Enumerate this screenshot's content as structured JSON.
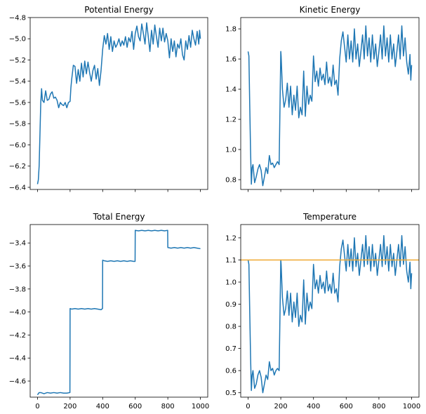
{
  "chart_data": [
    {
      "type": "line",
      "title": "Potential Energy",
      "xlim": [
        -45,
        1045
      ],
      "ylim": [
        -6.42,
        -4.8
      ],
      "x_ticks": [
        0,
        200,
        400,
        600,
        800,
        1000
      ],
      "y_ticks": [
        -6.4,
        -6.2,
        -6.0,
        -5.8,
        -5.6,
        -5.4,
        -5.2,
        -5.0,
        -4.8
      ],
      "y_tick_labels": [
        "−6.4",
        "−6.2",
        "−6.0",
        "−5.8",
        "−5.6",
        "−5.4",
        "−5.2",
        "−5.0",
        "−4.8"
      ],
      "show_x_tick_labels": false,
      "grid": false,
      "series": [
        {
          "color": "#1f77b4",
          "x": [
            0,
            5,
            10,
            15,
            20,
            25,
            30,
            40,
            50,
            60,
            70,
            80,
            90,
            100,
            110,
            120,
            130,
            140,
            150,
            160,
            170,
            180,
            190,
            200,
            205,
            210,
            220,
            230,
            240,
            250,
            260,
            270,
            280,
            290,
            300,
            310,
            320,
            330,
            340,
            350,
            360,
            370,
            380,
            390,
            400,
            410,
            420,
            430,
            440,
            450,
            460,
            470,
            480,
            490,
            500,
            510,
            520,
            530,
            540,
            550,
            560,
            570,
            580,
            590,
            600,
            610,
            620,
            630,
            640,
            650,
            660,
            670,
            680,
            690,
            700,
            710,
            720,
            730,
            740,
            750,
            760,
            770,
            780,
            790,
            800,
            810,
            820,
            830,
            840,
            850,
            860,
            870,
            880,
            890,
            900,
            910,
            920,
            930,
            940,
            950,
            960,
            970,
            980,
            990,
            995,
            1000
          ],
          "y": [
            -6.37,
            -6.33,
            -6.2,
            -5.9,
            -5.6,
            -5.47,
            -5.58,
            -5.6,
            -5.49,
            -5.58,
            -5.57,
            -5.52,
            -5.5,
            -5.56,
            -5.55,
            -5.58,
            -5.65,
            -5.6,
            -5.62,
            -5.63,
            -5.6,
            -5.65,
            -5.6,
            -5.59,
            -5.46,
            -5.38,
            -5.25,
            -5.26,
            -5.42,
            -5.29,
            -5.4,
            -5.23,
            -5.36,
            -5.21,
            -5.33,
            -5.22,
            -5.32,
            -5.4,
            -5.3,
            -5.25,
            -5.38,
            -5.28,
            -5.44,
            -5.3,
            -5.1,
            -4.97,
            -5.05,
            -4.95,
            -5.1,
            -4.98,
            -5.12,
            -5.02,
            -5.08,
            -5.05,
            -5.0,
            -5.07,
            -5.02,
            -5.06,
            -4.98,
            -5.08,
            -4.99,
            -5.03,
            -4.93,
            -5.1,
            -4.95,
            -4.88,
            -4.98,
            -5.02,
            -4.86,
            -4.95,
            -5.05,
            -4.85,
            -4.98,
            -5.12,
            -4.92,
            -5.05,
            -4.87,
            -4.98,
            -5.08,
            -4.9,
            -5.02,
            -4.9,
            -5.03,
            -4.95,
            -5.02,
            -5.18,
            -5.0,
            -5.12,
            -5.02,
            -5.17,
            -5.05,
            -5.09,
            -5.0,
            -5.15,
            -5.2,
            -5.02,
            -5.1,
            -4.97,
            -5.08,
            -4.92,
            -5.0,
            -5.06,
            -4.93,
            -5.05,
            -4.92,
            -5.0
          ]
        }
      ]
    },
    {
      "type": "line",
      "title": "Kinetic Energy",
      "xlim": [
        -45,
        1045
      ],
      "ylim": [
        0.735,
        1.875
      ],
      "x_ticks": [
        0,
        200,
        400,
        600,
        800,
        1000
      ],
      "y_ticks": [
        0.8,
        1.0,
        1.2,
        1.4,
        1.6,
        1.8
      ],
      "y_tick_labels": [
        "0.8",
        "1.0",
        "1.2",
        "1.4",
        "1.6",
        "1.8"
      ],
      "show_x_tick_labels": false,
      "grid": false,
      "series": [
        {
          "color": "#1f77b4",
          "x": [
            0,
            5,
            10,
            15,
            20,
            25,
            30,
            40,
            50,
            60,
            70,
            80,
            90,
            100,
            110,
            120,
            130,
            140,
            150,
            160,
            170,
            180,
            190,
            200,
            202,
            210,
            220,
            230,
            240,
            250,
            260,
            270,
            280,
            290,
            300,
            310,
            320,
            330,
            340,
            350,
            360,
            370,
            380,
            390,
            400,
            410,
            420,
            430,
            440,
            450,
            460,
            470,
            480,
            490,
            500,
            510,
            520,
            530,
            540,
            550,
            560,
            570,
            580,
            590,
            600,
            610,
            620,
            630,
            640,
            650,
            660,
            670,
            680,
            690,
            700,
            710,
            720,
            730,
            740,
            750,
            760,
            770,
            780,
            790,
            800,
            810,
            820,
            830,
            840,
            850,
            860,
            870,
            880,
            890,
            900,
            910,
            920,
            930,
            940,
            950,
            960,
            970,
            980,
            990,
            995,
            1000
          ],
          "y": [
            1.65,
            1.62,
            1.3,
            1.0,
            0.77,
            0.88,
            0.9,
            0.78,
            0.82,
            0.87,
            0.9,
            0.86,
            0.76,
            0.82,
            0.88,
            0.84,
            0.96,
            0.9,
            0.91,
            0.88,
            0.9,
            0.92,
            0.9,
            1.65,
            1.62,
            1.4,
            1.28,
            1.33,
            1.44,
            1.28,
            1.42,
            1.23,
            1.36,
            1.26,
            1.42,
            1.21,
            1.28,
            1.23,
            1.52,
            1.22,
            1.42,
            1.3,
            1.36,
            1.32,
            1.62,
            1.45,
            1.52,
            1.42,
            1.54,
            1.46,
            1.5,
            1.43,
            1.58,
            1.44,
            1.48,
            1.42,
            1.56,
            1.43,
            1.46,
            1.36,
            1.6,
            1.72,
            1.78,
            1.68,
            1.58,
            1.76,
            1.6,
            1.72,
            1.58,
            1.8,
            1.6,
            1.7,
            1.55,
            1.65,
            1.76,
            1.6,
            1.82,
            1.62,
            1.74,
            1.58,
            1.76,
            1.6,
            1.7,
            1.55,
            1.65,
            1.76,
            1.6,
            1.82,
            1.62,
            1.74,
            1.58,
            1.76,
            1.6,
            1.7,
            1.55,
            1.65,
            1.76,
            1.6,
            1.82,
            1.62,
            1.74,
            1.58,
            1.5,
            1.63,
            1.46,
            1.56
          ]
        }
      ]
    },
    {
      "type": "line",
      "title": "Total Energy",
      "xlim": [
        -45,
        1045
      ],
      "ylim": [
        -4.74,
        -3.24
      ],
      "x_ticks": [
        0,
        200,
        400,
        600,
        800,
        1000
      ],
      "x_tick_labels": [
        "0",
        "200",
        "400",
        "600",
        "800",
        "1000"
      ],
      "y_ticks": [
        -4.6,
        -4.4,
        -4.2,
        -4.0,
        -3.8,
        -3.6,
        -3.4
      ],
      "y_tick_labels": [
        "−4.6",
        "−4.4",
        "−4.2",
        "−4.0",
        "−3.8",
        "−3.6",
        "−3.4"
      ],
      "show_x_tick_labels": true,
      "grid": false,
      "series": [
        {
          "color": "#1f77b4",
          "x": [
            0,
            10,
            20,
            40,
            60,
            80,
            100,
            120,
            140,
            160,
            180,
            199,
            200,
            210,
            230,
            250,
            270,
            290,
            310,
            330,
            350,
            370,
            390,
            399,
            400,
            410,
            430,
            450,
            470,
            490,
            510,
            530,
            550,
            570,
            590,
            599,
            600,
            620,
            640,
            660,
            680,
            700,
            720,
            740,
            760,
            780,
            799,
            800,
            820,
            840,
            860,
            880,
            900,
            920,
            940,
            960,
            980,
            1000
          ],
          "y": [
            -4.72,
            -4.7,
            -4.7,
            -4.71,
            -4.7,
            -4.705,
            -4.7,
            -4.705,
            -4.7,
            -4.705,
            -4.705,
            -4.7,
            -3.97,
            -3.975,
            -3.97,
            -3.975,
            -3.97,
            -3.975,
            -3.97,
            -3.975,
            -3.97,
            -3.975,
            -3.98,
            -3.97,
            -3.55,
            -3.555,
            -3.56,
            -3.555,
            -3.56,
            -3.555,
            -3.56,
            -3.555,
            -3.56,
            -3.555,
            -3.56,
            -3.56,
            -3.29,
            -3.295,
            -3.29,
            -3.295,
            -3.29,
            -3.295,
            -3.29,
            -3.295,
            -3.29,
            -3.295,
            -3.29,
            -3.44,
            -3.445,
            -3.44,
            -3.445,
            -3.44,
            -3.445,
            -3.44,
            -3.445,
            -3.44,
            -3.445,
            -3.45
          ]
        }
      ]
    },
    {
      "type": "line",
      "title": "Temperature",
      "xlim": [
        -45,
        1045
      ],
      "ylim": [
        0.48,
        1.26
      ],
      "x_ticks": [
        0,
        200,
        400,
        600,
        800,
        1000
      ],
      "x_tick_labels": [
        "0",
        "200",
        "400",
        "600",
        "800",
        "1000"
      ],
      "y_ticks": [
        0.5,
        0.6,
        0.7,
        0.8,
        0.9,
        1.0,
        1.1,
        1.2
      ],
      "y_tick_labels": [
        "0.5",
        "0.6",
        "0.7",
        "0.8",
        "0.9",
        "1.0",
        "1.1",
        "1.2"
      ],
      "show_x_tick_labels": true,
      "grid": false,
      "hline": {
        "y": 1.1,
        "color": "#f0a830"
      },
      "series": [
        {
          "color": "#1f77b4",
          "x": [
            0,
            5,
            10,
            15,
            20,
            25,
            30,
            40,
            50,
            60,
            70,
            80,
            90,
            100,
            110,
            120,
            130,
            140,
            150,
            160,
            170,
            180,
            190,
            200,
            202,
            210,
            220,
            230,
            240,
            250,
            260,
            270,
            280,
            290,
            300,
            310,
            320,
            330,
            340,
            350,
            360,
            370,
            380,
            390,
            400,
            410,
            420,
            430,
            440,
            450,
            460,
            470,
            480,
            490,
            500,
            510,
            520,
            530,
            540,
            550,
            560,
            570,
            580,
            590,
            600,
            610,
            620,
            630,
            640,
            650,
            660,
            670,
            680,
            690,
            700,
            710,
            720,
            730,
            740,
            750,
            760,
            770,
            780,
            790,
            800,
            810,
            820,
            830,
            840,
            850,
            860,
            870,
            880,
            890,
            900,
            910,
            920,
            930,
            940,
            950,
            960,
            970,
            980,
            990,
            995,
            1000
          ],
          "y": [
            1.1,
            1.08,
            0.87,
            0.67,
            0.51,
            0.58,
            0.6,
            0.52,
            0.54,
            0.58,
            0.6,
            0.57,
            0.5,
            0.54,
            0.58,
            0.56,
            0.64,
            0.6,
            0.61,
            0.58,
            0.6,
            0.61,
            0.6,
            1.1,
            1.08,
            0.93,
            0.85,
            0.88,
            0.96,
            0.85,
            0.95,
            0.82,
            0.91,
            0.84,
            0.95,
            0.8,
            0.85,
            0.82,
            1.01,
            0.81,
            0.95,
            0.87,
            0.91,
            0.88,
            1.08,
            0.97,
            1.01,
            0.95,
            1.03,
            0.97,
            1.0,
            0.95,
            1.05,
            0.96,
            0.99,
            0.95,
            1.04,
            0.95,
            0.97,
            0.91,
            1.07,
            1.15,
            1.19,
            1.12,
            1.05,
            1.17,
            1.07,
            1.15,
            1.05,
            1.2,
            1.07,
            1.13,
            1.03,
            1.1,
            1.17,
            1.07,
            1.21,
            1.08,
            1.16,
            1.05,
            1.17,
            1.07,
            1.13,
            1.03,
            1.1,
            1.17,
            1.07,
            1.21,
            1.08,
            1.16,
            1.05,
            1.17,
            1.07,
            1.13,
            1.03,
            1.1,
            1.17,
            1.07,
            1.21,
            1.08,
            1.16,
            1.05,
            1.0,
            1.09,
            0.97,
            1.04
          ]
        }
      ]
    }
  ]
}
